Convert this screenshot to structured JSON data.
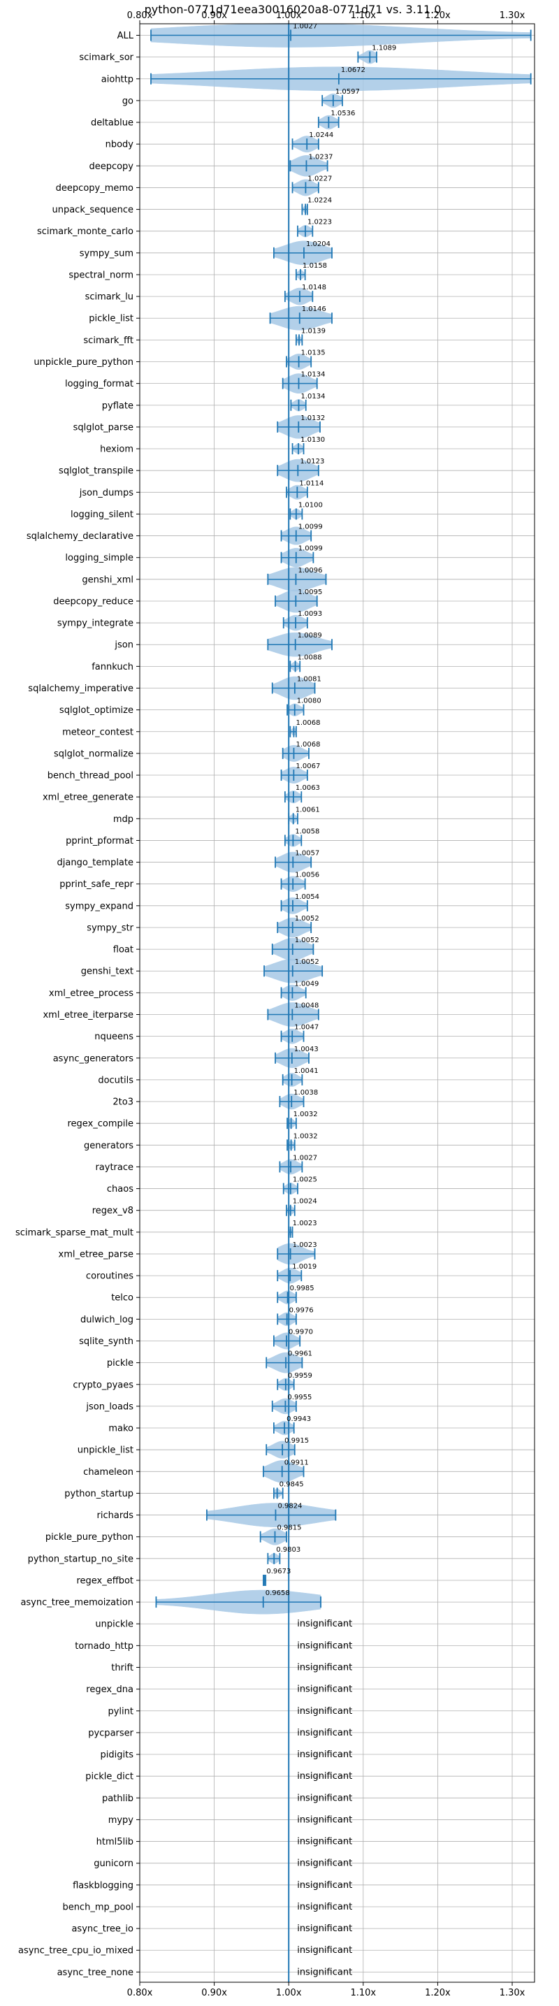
{
  "chart_data": {
    "type": "violin",
    "title": "python-0771d71eea30016020a8-0771d71 vs. 3.11.0",
    "xlim": [
      0.8,
      1.33
    ],
    "x_ticks": [
      0.8,
      0.9,
      1.0,
      1.1,
      1.2,
      1.3
    ],
    "x_tick_labels": [
      "0.80x",
      "0.90x",
      "1.00x",
      "1.10x",
      "1.20x",
      "1.30x"
    ],
    "reference_line": 1.0,
    "grid": true,
    "colors": {
      "violin": "#1f77b4",
      "violin_fill": "#a6c8e6",
      "reference": "#1f77b4",
      "grid": "#b0b0b0"
    },
    "insignificant_label": "insignificant",
    "benchmarks": [
      {
        "name": "ALL",
        "mean": 1.0027,
        "min": 0.815,
        "max": 1.325,
        "label": "1.0027"
      },
      {
        "name": "scimark_sor",
        "mean": 1.1089,
        "min": 1.093,
        "max": 1.118,
        "label": "1.1089"
      },
      {
        "name": "aiohttp",
        "mean": 1.0672,
        "min": 0.815,
        "max": 1.325,
        "label": "1.0672"
      },
      {
        "name": "go",
        "mean": 1.0597,
        "min": 1.045,
        "max": 1.072,
        "label": "1.0597"
      },
      {
        "name": "deltablue",
        "mean": 1.0536,
        "min": 1.04,
        "max": 1.067,
        "label": "1.0536"
      },
      {
        "name": "nbody",
        "mean": 1.0244,
        "min": 1.005,
        "max": 1.04,
        "label": "1.0244"
      },
      {
        "name": "deepcopy",
        "mean": 1.0237,
        "min": 1.002,
        "max": 1.052,
        "label": "1.0237"
      },
      {
        "name": "deepcopy_memo",
        "mean": 1.0227,
        "min": 1.005,
        "max": 1.04,
        "label": "1.0227"
      },
      {
        "name": "unpack_sequence",
        "mean": 1.0224,
        "min": 1.018,
        "max": 1.025,
        "label": "1.0224"
      },
      {
        "name": "scimark_monte_carlo",
        "mean": 1.0223,
        "min": 1.012,
        "max": 1.032,
        "label": "1.0223"
      },
      {
        "name": "sympy_sum",
        "mean": 1.0204,
        "min": 0.98,
        "max": 1.058,
        "label": "1.0204"
      },
      {
        "name": "spectral_norm",
        "mean": 1.0158,
        "min": 1.01,
        "max": 1.022,
        "label": "1.0158"
      },
      {
        "name": "scimark_lu",
        "mean": 1.0148,
        "min": 0.995,
        "max": 1.032,
        "label": "1.0148"
      },
      {
        "name": "pickle_list",
        "mean": 1.0146,
        "min": 0.975,
        "max": 1.058,
        "label": "1.0146"
      },
      {
        "name": "scimark_fft",
        "mean": 1.0139,
        "min": 1.01,
        "max": 1.018,
        "label": "1.0139"
      },
      {
        "name": "unpickle_pure_python",
        "mean": 1.0135,
        "min": 0.997,
        "max": 1.03,
        "label": "1.0135"
      },
      {
        "name": "logging_format",
        "mean": 1.0134,
        "min": 0.992,
        "max": 1.038,
        "label": "1.0134"
      },
      {
        "name": "pyflate",
        "mean": 1.0134,
        "min": 1.003,
        "max": 1.023,
        "label": "1.0134"
      },
      {
        "name": "sqlglot_parse",
        "mean": 1.0132,
        "min": 0.985,
        "max": 1.042,
        "label": "1.0132"
      },
      {
        "name": "hexiom",
        "mean": 1.013,
        "min": 1.005,
        "max": 1.02,
        "label": "1.0130"
      },
      {
        "name": "sqlglot_transpile",
        "mean": 1.0123,
        "min": 0.985,
        "max": 1.04,
        "label": "1.0123"
      },
      {
        "name": "json_dumps",
        "mean": 1.0114,
        "min": 0.997,
        "max": 1.025,
        "label": "1.0114"
      },
      {
        "name": "logging_silent",
        "mean": 1.01,
        "min": 1.002,
        "max": 1.018,
        "label": "1.0100"
      },
      {
        "name": "sqlalchemy_declarative",
        "mean": 1.0099,
        "min": 0.99,
        "max": 1.03,
        "label": "1.0099"
      },
      {
        "name": "logging_simple",
        "mean": 1.0099,
        "min": 0.99,
        "max": 1.033,
        "label": "1.0099"
      },
      {
        "name": "genshi_xml",
        "mean": 1.0096,
        "min": 0.972,
        "max": 1.05,
        "label": "1.0096"
      },
      {
        "name": "deepcopy_reduce",
        "mean": 1.0095,
        "min": 0.982,
        "max": 1.038,
        "label": "1.0095"
      },
      {
        "name": "sympy_integrate",
        "mean": 1.0093,
        "min": 0.993,
        "max": 1.025,
        "label": "1.0093"
      },
      {
        "name": "json",
        "mean": 1.0089,
        "min": 0.972,
        "max": 1.058,
        "label": "1.0089"
      },
      {
        "name": "fannkuch",
        "mean": 1.0088,
        "min": 1.002,
        "max": 1.015,
        "label": "1.0088"
      },
      {
        "name": "sqlalchemy_imperative",
        "mean": 1.0081,
        "min": 0.978,
        "max": 1.035,
        "label": "1.0081"
      },
      {
        "name": "sqlglot_optimize",
        "mean": 1.008,
        "min": 0.998,
        "max": 1.02,
        "label": "1.0080"
      },
      {
        "name": "meteor_contest",
        "mean": 1.0068,
        "min": 1.002,
        "max": 1.01,
        "label": "1.0068"
      },
      {
        "name": "sqlglot_normalize",
        "mean": 1.0068,
        "min": 0.992,
        "max": 1.027,
        "label": "1.0068"
      },
      {
        "name": "bench_thread_pool",
        "mean": 1.0067,
        "min": 0.99,
        "max": 1.025,
        "label": "1.0067"
      },
      {
        "name": "xml_etree_generate",
        "mean": 1.0063,
        "min": 0.995,
        "max": 1.017,
        "label": "1.0063"
      },
      {
        "name": "mdp",
        "mean": 1.0061,
        "min": 1.0,
        "max": 1.012,
        "label": "1.0061"
      },
      {
        "name": "pprint_pformat",
        "mean": 1.0058,
        "min": 0.995,
        "max": 1.017,
        "label": "1.0058"
      },
      {
        "name": "django_template",
        "mean": 1.0057,
        "min": 0.982,
        "max": 1.03,
        "label": "1.0057"
      },
      {
        "name": "pprint_safe_repr",
        "mean": 1.0056,
        "min": 0.99,
        "max": 1.022,
        "label": "1.0056"
      },
      {
        "name": "sympy_expand",
        "mean": 1.0054,
        "min": 0.99,
        "max": 1.025,
        "label": "1.0054"
      },
      {
        "name": "sympy_str",
        "mean": 1.0052,
        "min": 0.985,
        "max": 1.03,
        "label": "1.0052"
      },
      {
        "name": "float",
        "mean": 1.0052,
        "min": 0.978,
        "max": 1.033,
        "label": "1.0052"
      },
      {
        "name": "genshi_text",
        "mean": 1.0052,
        "min": 0.967,
        "max": 1.045,
        "label": "1.0052"
      },
      {
        "name": "xml_etree_process",
        "mean": 1.0049,
        "min": 0.99,
        "max": 1.023,
        "label": "1.0049"
      },
      {
        "name": "xml_etree_iterparse",
        "mean": 1.0048,
        "min": 0.972,
        "max": 1.04,
        "label": "1.0048"
      },
      {
        "name": "nqueens",
        "mean": 1.0047,
        "min": 0.99,
        "max": 1.02,
        "label": "1.0047"
      },
      {
        "name": "async_generators",
        "mean": 1.0043,
        "min": 0.982,
        "max": 1.027,
        "label": "1.0043"
      },
      {
        "name": "docutils",
        "mean": 1.0041,
        "min": 0.992,
        "max": 1.018,
        "label": "1.0041"
      },
      {
        "name": "2to3",
        "mean": 1.0038,
        "min": 0.988,
        "max": 1.02,
        "label": "1.0038"
      },
      {
        "name": "regex_compile",
        "mean": 1.0032,
        "min": 0.998,
        "max": 1.01,
        "label": "1.0032"
      },
      {
        "name": "generators",
        "mean": 1.0032,
        "min": 0.998,
        "max": 1.008,
        "label": "1.0032"
      },
      {
        "name": "raytrace",
        "mean": 1.0027,
        "min": 0.988,
        "max": 1.018,
        "label": "1.0027"
      },
      {
        "name": "chaos",
        "mean": 1.0025,
        "min": 0.993,
        "max": 1.012,
        "label": "1.0025"
      },
      {
        "name": "regex_v8",
        "mean": 1.0024,
        "min": 0.997,
        "max": 1.008,
        "label": "1.0024"
      },
      {
        "name": "scimark_sparse_mat_mult",
        "mean": 1.0023,
        "min": 1.0,
        "max": 1.005,
        "label": "1.0023"
      },
      {
        "name": "xml_etree_parse",
        "mean": 1.0023,
        "min": 0.985,
        "max": 1.035,
        "label": "1.0023"
      },
      {
        "name": "coroutines",
        "mean": 1.0019,
        "min": 0.985,
        "max": 1.017,
        "label": "1.0019"
      },
      {
        "name": "telco",
        "mean": 0.9985,
        "min": 0.985,
        "max": 1.01,
        "label": "0.9985"
      },
      {
        "name": "dulwich_log",
        "mean": 0.9976,
        "min": 0.985,
        "max": 1.01,
        "label": "0.9976"
      },
      {
        "name": "sqlite_synth",
        "mean": 0.997,
        "min": 0.98,
        "max": 1.015,
        "label": "0.9970"
      },
      {
        "name": "pickle",
        "mean": 0.9961,
        "min": 0.97,
        "max": 1.018,
        "label": "0.9961"
      },
      {
        "name": "crypto_pyaes",
        "mean": 0.9959,
        "min": 0.985,
        "max": 1.007,
        "label": "0.9959"
      },
      {
        "name": "json_loads",
        "mean": 0.9955,
        "min": 0.978,
        "max": 1.01,
        "label": "0.9955"
      },
      {
        "name": "mako",
        "mean": 0.9943,
        "min": 0.98,
        "max": 1.007,
        "label": "0.9943"
      },
      {
        "name": "unpickle_list",
        "mean": 0.9915,
        "min": 0.97,
        "max": 1.008,
        "label": "0.9915"
      },
      {
        "name": "chameleon",
        "mean": 0.9911,
        "min": 0.966,
        "max": 1.02,
        "label": "0.9911"
      },
      {
        "name": "python_startup",
        "mean": 0.9845,
        "min": 0.98,
        "max": 0.992,
        "label": "0.9845"
      },
      {
        "name": "richards",
        "mean": 0.9824,
        "min": 0.89,
        "max": 1.063,
        "label": "0.9824"
      },
      {
        "name": "pickle_pure_python",
        "mean": 0.9815,
        "min": 0.962,
        "max": 0.997,
        "label": "0.9815"
      },
      {
        "name": "python_startup_no_site",
        "mean": 0.9803,
        "min": 0.972,
        "max": 0.988,
        "label": "0.9803"
      },
      {
        "name": "regex_effbot",
        "mean": 0.9673,
        "min": 0.966,
        "max": 0.969,
        "label": "0.9673"
      },
      {
        "name": "async_tree_memoization",
        "mean": 0.9658,
        "min": 0.822,
        "max": 1.043,
        "label": "0.9658"
      },
      {
        "name": "unpickle",
        "insignificant": true
      },
      {
        "name": "tornado_http",
        "insignificant": true
      },
      {
        "name": "thrift",
        "insignificant": true
      },
      {
        "name": "regex_dna",
        "insignificant": true
      },
      {
        "name": "pylint",
        "insignificant": true
      },
      {
        "name": "pycparser",
        "insignificant": true
      },
      {
        "name": "pidigits",
        "insignificant": true
      },
      {
        "name": "pickle_dict",
        "insignificant": true
      },
      {
        "name": "pathlib",
        "insignificant": true
      },
      {
        "name": "mypy",
        "insignificant": true
      },
      {
        "name": "html5lib",
        "insignificant": true
      },
      {
        "name": "gunicorn",
        "insignificant": true
      },
      {
        "name": "flaskblogging",
        "insignificant": true
      },
      {
        "name": "bench_mp_pool",
        "insignificant": true
      },
      {
        "name": "async_tree_io",
        "insignificant": true
      },
      {
        "name": "async_tree_cpu_io_mixed",
        "insignificant": true
      },
      {
        "name": "async_tree_none",
        "insignificant": true
      }
    ]
  }
}
